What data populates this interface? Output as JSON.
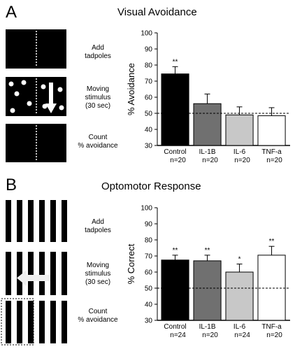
{
  "panels": [
    {
      "letter": "A",
      "title": "Visual Avoidance",
      "steps": [
        {
          "lines": [
            "Add",
            "tadpoles"
          ]
        },
        {
          "lines": [
            "Moving",
            "stimulus",
            "(30 sec)"
          ]
        },
        {
          "lines": [
            "Count",
            "% avoidance"
          ]
        }
      ]
    },
    {
      "letter": "B",
      "title": "Optomotor Response",
      "steps": [
        {
          "lines": [
            "Add",
            "tadpoles"
          ]
        },
        {
          "lines": [
            "Moving",
            "stimulus",
            "(30 sec)"
          ]
        },
        {
          "lines": [
            "Count",
            "% avoidance"
          ]
        }
      ]
    }
  ],
  "chart_data": [
    {
      "type": "bar",
      "title": "Visual Avoidance",
      "ylabel": "% Avoidance",
      "ylim": [
        30,
        100
      ],
      "yticks": [
        30,
        40,
        50,
        60,
        70,
        80,
        90,
        100
      ],
      "reference_line": 50,
      "categories": [
        "Control",
        "IL-1B",
        "IL-6",
        "TNF-a"
      ],
      "n_labels": [
        "n=20",
        "n=20",
        "n=20",
        "n=20"
      ],
      "values": [
        74.5,
        56,
        49,
        48.5
      ],
      "errors": [
        4.5,
        6,
        5,
        5
      ],
      "significance": [
        "**",
        "",
        "",
        ""
      ],
      "colors": [
        "#000000",
        "#707070",
        "#c8c8c8",
        "#ffffff"
      ]
    },
    {
      "type": "bar",
      "title": "Optomotor Response",
      "ylabel": "% Correct",
      "ylim": [
        30,
        100
      ],
      "yticks": [
        30,
        40,
        50,
        60,
        70,
        80,
        90,
        100
      ],
      "reference_line": 50,
      "categories": [
        "Control",
        "IL-1B",
        "IL-6",
        "TNF-a"
      ],
      "n_labels": [
        "n=24",
        "n=20",
        "n=24",
        "n=20"
      ],
      "values": [
        67.5,
        67,
        60,
        70.5
      ],
      "errors": [
        3,
        3.5,
        5,
        5.5
      ],
      "significance": [
        "**",
        "**",
        "*",
        "**"
      ],
      "colors": [
        "#000000",
        "#707070",
        "#c8c8c8",
        "#ffffff"
      ]
    }
  ]
}
